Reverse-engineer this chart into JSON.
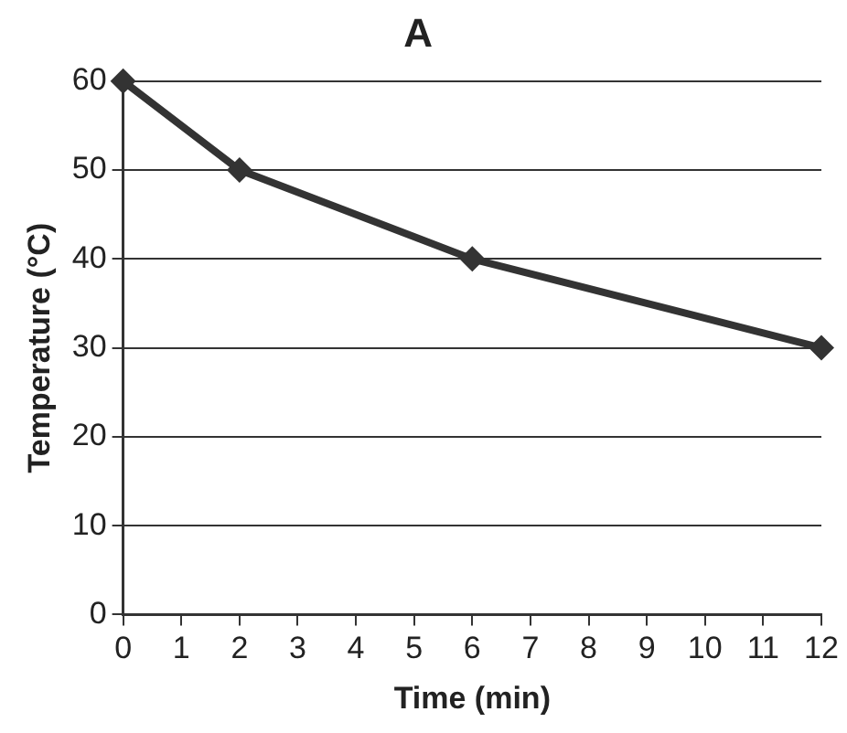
{
  "chart_data": {
    "type": "line",
    "title": "A",
    "xlabel": "Time (min)",
    "ylabel": "Temperature (°C)",
    "x": [
      0,
      2,
      6,
      12
    ],
    "series": [
      {
        "color": "#333333",
        "values": [
          60,
          50,
          40,
          30
        ]
      }
    ],
    "xlim": [
      0,
      12
    ],
    "xticks": [
      0,
      1,
      2,
      3,
      4,
      5,
      6,
      7,
      8,
      9,
      10,
      11,
      12
    ],
    "ylim": [
      0,
      60
    ],
    "yticks": [
      0,
      10,
      20,
      30,
      40,
      50,
      60
    ],
    "grid": "y",
    "legend": false,
    "marker": "diamond",
    "line_style": "solid"
  }
}
